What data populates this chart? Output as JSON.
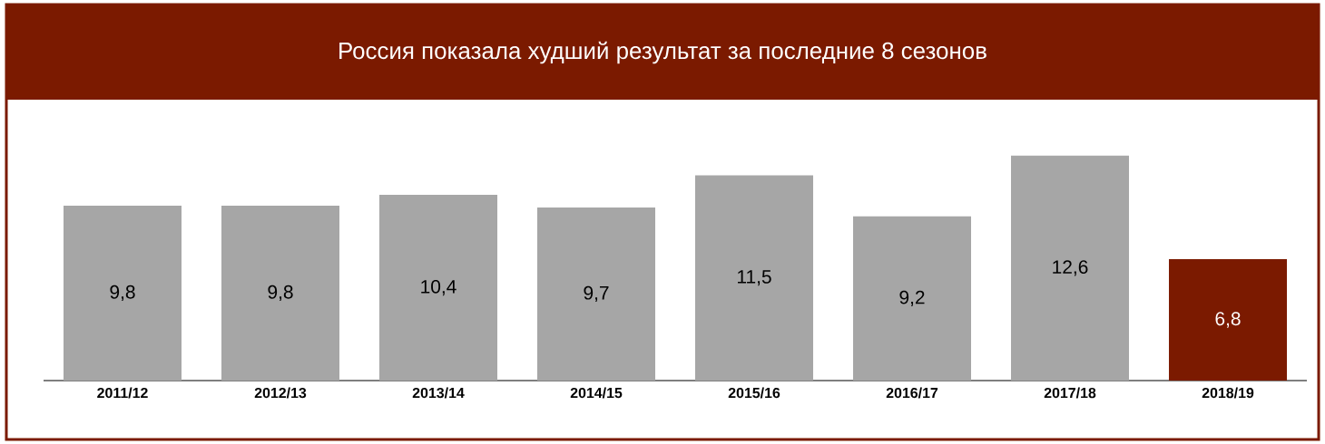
{
  "chart_data": {
    "type": "bar",
    "title": "Россия показала худший результат за последние 8 сезонов",
    "categories": [
      "2011/12",
      "2012/13",
      "2013/14",
      "2014/15",
      "2015/16",
      "2016/17",
      "2017/18",
      "2018/19"
    ],
    "values": [
      9.8,
      9.8,
      10.4,
      9.7,
      11.5,
      9.2,
      12.6,
      6.8
    ],
    "value_labels": [
      "9,8",
      "9,8",
      "10,4",
      "9,7",
      "11,5",
      "9,2",
      "12,6",
      "6,8"
    ],
    "colors": [
      "#a6a6a6",
      "#a6a6a6",
      "#a6a6a6",
      "#a6a6a6",
      "#a6a6a6",
      "#a6a6a6",
      "#a6a6a6",
      "#7b1a00"
    ]
  }
}
